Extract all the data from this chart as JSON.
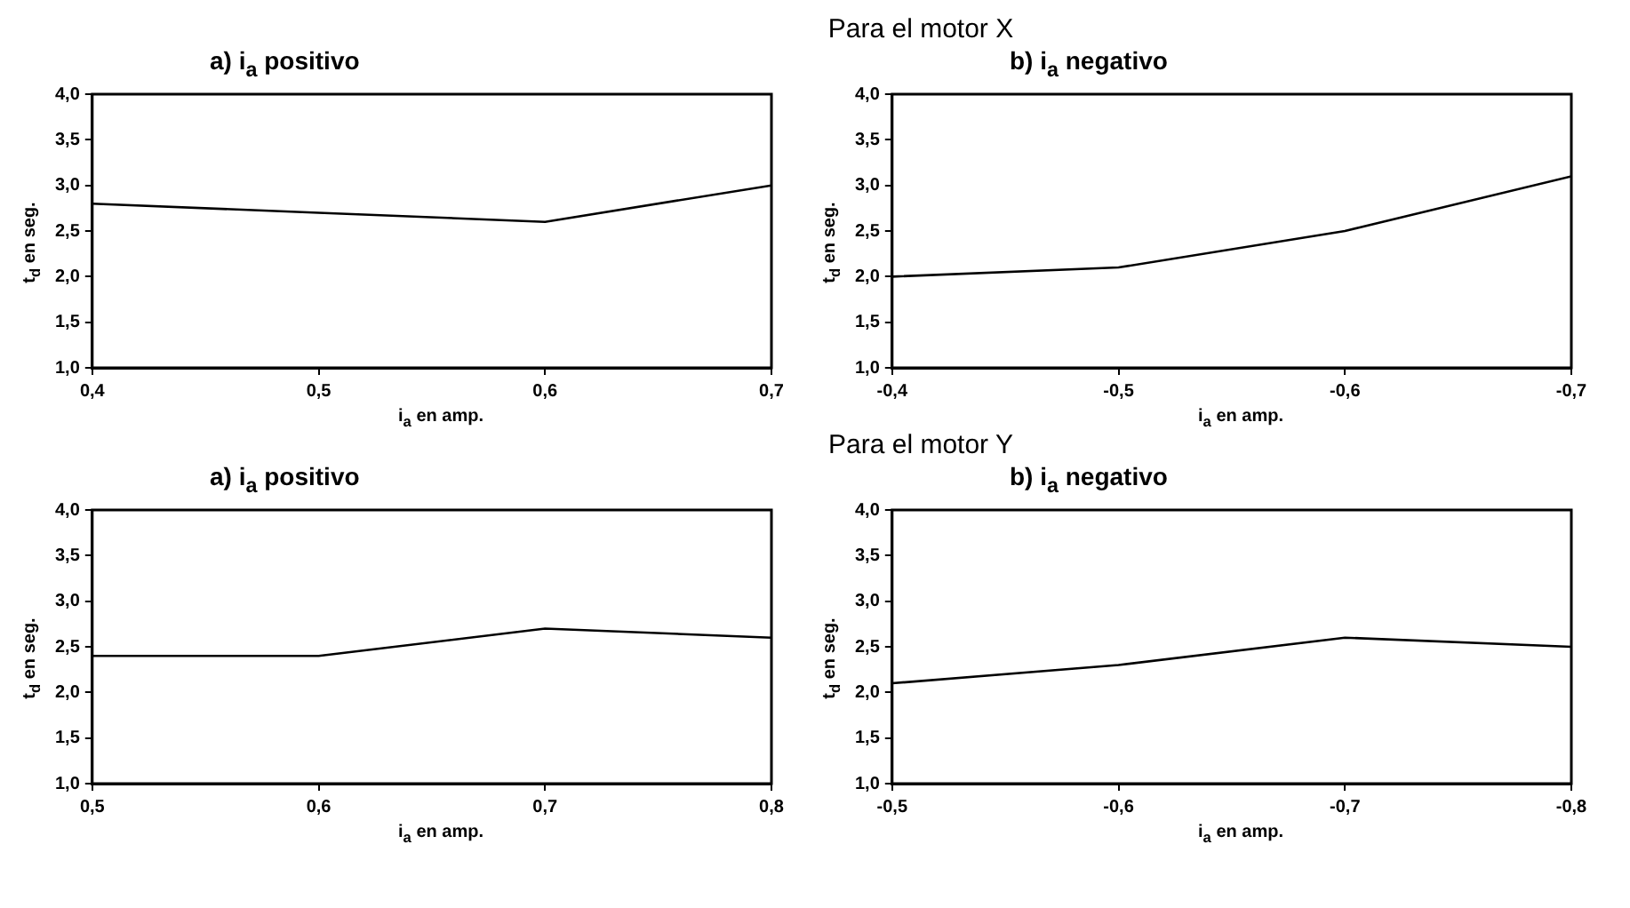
{
  "chart_data": [
    {
      "type": "line",
      "title": "a) i$_{a}$ positivo",
      "annotations": [
        "Para el motor X"
      ],
      "xlabel": "i$_{a}$ en amp.",
      "ylabel": "t$_{d}$ en seg.",
      "x": [
        0.4,
        0.5,
        0.6,
        0.7
      ],
      "values": [
        2.8,
        2.7,
        2.6,
        3.0
      ],
      "color": "#000000",
      "xlim": [
        0.4,
        0.7
      ],
      "xticks": [
        {
          "value": 0.4,
          "label": "0,4"
        },
        {
          "value": 0.5,
          "label": "0,5"
        },
        {
          "value": 0.6,
          "label": "0,6"
        },
        {
          "value": 0.7,
          "label": "0,7"
        }
      ],
      "ylim": [
        1,
        4
      ],
      "yticks": [
        {
          "value": 1,
          "label": "1,0"
        },
        {
          "value": 1.5,
          "label": "1,5"
        },
        {
          "value": 2,
          "label": "2,0"
        },
        {
          "value": 2.5,
          "label": "2,5"
        },
        {
          "value": 3,
          "label": "3,0"
        },
        {
          "value": 3.5,
          "label": "3,5"
        },
        {
          "value": 4,
          "label": "4,0"
        }
      ],
      "grid": false,
      "legend": false,
      "marker": "none"
    },
    {
      "type": "line",
      "title": "b) i$_{a}$ negativo",
      "xlabel": "i$_{a}$ en amp.",
      "ylabel": "t$_{d}$ en seg.",
      "x": [
        -0.4,
        -0.5,
        -0.6,
        -0.7
      ],
      "values": [
        2.0,
        2.1,
        2.5,
        3.1
      ],
      "color": "#000000",
      "xlim": [
        -0.4,
        -0.7
      ],
      "xticks": [
        {
          "value": -0.4,
          "label": "-0,4"
        },
        {
          "value": -0.5,
          "label": "-0,5"
        },
        {
          "value": -0.6,
          "label": "-0,6"
        },
        {
          "value": -0.7,
          "label": "-0,7"
        }
      ],
      "ylim": [
        1,
        4
      ],
      "yticks": [
        {
          "value": 1,
          "label": "1,0"
        },
        {
          "value": 1.5,
          "label": "1,5"
        },
        {
          "value": 2,
          "label": "2,0"
        },
        {
          "value": 2.5,
          "label": "2,5"
        },
        {
          "value": 3,
          "label": "3,0"
        },
        {
          "value": 3.5,
          "label": "3,5"
        },
        {
          "value": 4,
          "label": "4,0"
        }
      ],
      "grid": false,
      "legend": false,
      "marker": "none"
    },
    {
      "type": "line",
      "title": "a) i$_{a}$ positivo",
      "annotations": [
        "Para el motor Y"
      ],
      "xlabel": "i$_{a}$ en amp.",
      "ylabel": "t$_{d}$ en seg.",
      "x": [
        0.5,
        0.6,
        0.7,
        0.8
      ],
      "values": [
        2.4,
        2.4,
        2.7,
        2.6
      ],
      "color": "#000000",
      "xlim": [
        0.5,
        0.8
      ],
      "xticks": [
        {
          "value": 0.5,
          "label": "0,5"
        },
        {
          "value": 0.6,
          "label": "0,6"
        },
        {
          "value": 0.7,
          "label": "0,7"
        },
        {
          "value": 0.8,
          "label": "0,8"
        }
      ],
      "ylim": [
        1,
        4
      ],
      "yticks": [
        {
          "value": 1,
          "label": "1,0"
        },
        {
          "value": 1.5,
          "label": "1,5"
        },
        {
          "value": 2,
          "label": "2,0"
        },
        {
          "value": 2.5,
          "label": "2,5"
        },
        {
          "value": 3,
          "label": "3,0"
        },
        {
          "value": 3.5,
          "label": "3,5"
        },
        {
          "value": 4,
          "label": "4,0"
        }
      ],
      "grid": false,
      "legend": false,
      "marker": "none"
    },
    {
      "type": "line",
      "title": "b) i$_{a}$ negativo",
      "xlabel": "i$_{a}$ en amp.",
      "ylabel": "t$_{d}$ en seg.",
      "x": [
        -0.5,
        -0.6,
        -0.7,
        -0.8
      ],
      "values": [
        2.1,
        2.3,
        2.6,
        2.5
      ],
      "color": "#000000",
      "xlim": [
        -0.5,
        -0.8
      ],
      "xticks": [
        {
          "value": -0.5,
          "label": "-0,5"
        },
        {
          "value": -0.6,
          "label": "-0,6"
        },
        {
          "value": -0.7,
          "label": "-0,7"
        },
        {
          "value": -0.8,
          "label": "-0,8"
        }
      ],
      "ylim": [
        1,
        4
      ],
      "yticks": [
        {
          "value": 1,
          "label": "1,0"
        },
        {
          "value": 1.5,
          "label": "1,5"
        },
        {
          "value": 2,
          "label": "2,0"
        },
        {
          "value": 2.5,
          "label": "2,5"
        },
        {
          "value": 3,
          "label": "3,0"
        },
        {
          "value": 3.5,
          "label": "3,5"
        },
        {
          "value": 4,
          "label": "4,0"
        }
      ],
      "grid": false,
      "legend": false,
      "marker": "none"
    }
  ]
}
